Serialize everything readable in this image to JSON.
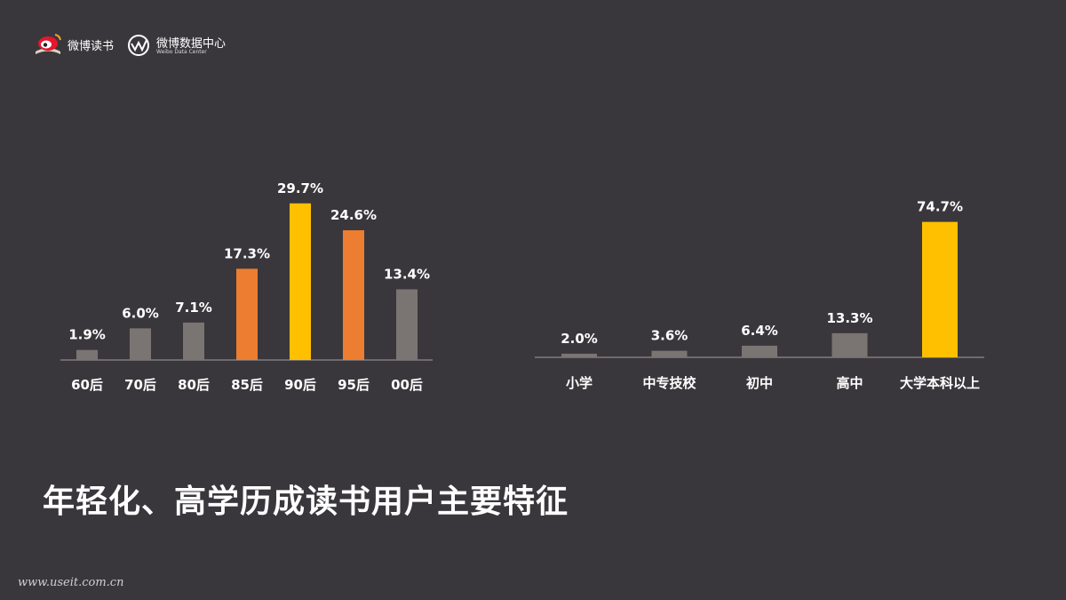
{
  "logos": {
    "weibo_reading": {
      "label": "微博读书",
      "icon": "weibo-eye-book-icon"
    },
    "weibo_data": {
      "label": "微博数据中心",
      "sublabel": "Weibo Data Center",
      "icon": "weibo-data-wave-icon"
    }
  },
  "colors": {
    "gray": "#7a7573",
    "orange": "#ed7d31",
    "yellow": "#ffc000",
    "axis": "#8c8a8c"
  },
  "chart_data": [
    {
      "type": "bar",
      "categories": [
        "60后",
        "70后",
        "80后",
        "85后",
        "90后",
        "95后",
        "00后"
      ],
      "values": [
        1.9,
        6.0,
        7.1,
        17.3,
        29.7,
        24.6,
        13.4
      ],
      "value_labels": [
        "1.9%",
        "6.0%",
        "7.1%",
        "17.3%",
        "29.7%",
        "24.6%",
        "13.4%"
      ],
      "bar_colors": [
        "gray",
        "gray",
        "gray",
        "orange",
        "yellow",
        "orange",
        "gray"
      ],
      "unit": "%",
      "ylim": [
        0,
        30
      ]
    },
    {
      "type": "bar",
      "categories": [
        "小学",
        "中专技校",
        "初中",
        "高中",
        "大学本科以上"
      ],
      "values": [
        2.0,
        3.6,
        6.4,
        13.3,
        74.7
      ],
      "value_labels": [
        "2.0%",
        "3.6%",
        "6.4%",
        "13.3%",
        "74.7%"
      ],
      "bar_colors": [
        "gray",
        "gray",
        "gray",
        "gray",
        "yellow"
      ],
      "unit": "%",
      "ylim": [
        0,
        75
      ]
    }
  ],
  "headline": "年轻化、高学历成读书用户主要特征",
  "watermark": "www.useit.com.cn"
}
